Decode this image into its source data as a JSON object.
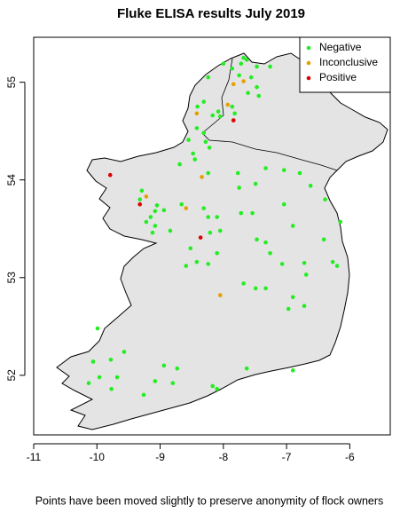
{
  "chart_data": {
    "type": "scatter",
    "title": "Fluke ELISA results July 2019",
    "caption": "Points have been moved slightly to preserve anonymity of flock owners",
    "xlim": [
      -11,
      -5.36
    ],
    "ylim": [
      51.39,
      55.46
    ],
    "xticks": [
      -11,
      -10,
      -9,
      -8,
      -7,
      -6
    ],
    "yticks": [
      52,
      53,
      54,
      55
    ],
    "legend": "top-right",
    "series": [
      {
        "name": "Negative",
        "color": "#22ee22",
        "x": [
          -7.68,
          -7.63,
          -7.72,
          -7.86,
          -7.75,
          -7.47,
          -7.26,
          -7.56,
          -7.47,
          -7.61,
          -7.44,
          -8.24,
          -8.0,
          -8.31,
          -8.08,
          -8.17,
          -8.05,
          -7.86,
          -8.41,
          -8.55,
          -8.48,
          -8.28,
          -8.22,
          -8.45,
          -8.69,
          -8.42,
          -8.31,
          -7.82,
          -7.77,
          -7.33,
          -7.04,
          -8.24,
          -7.75,
          -7.49,
          -6.79,
          -6.62,
          -6.39,
          -6.15,
          -9.29,
          -9.32,
          -9.05,
          -8.94,
          -9.15,
          -9.22,
          -9.08,
          -9.12,
          -8.84,
          -9.08,
          -8.66,
          -8.31,
          -8.24,
          -8.1,
          -8.21,
          -8.05,
          -8.52,
          -8.42,
          -8.24,
          -8.1,
          -8.59,
          -7.72,
          -7.54,
          -7.04,
          -6.9,
          -7.47,
          -7.33,
          -7.26,
          -7.07,
          -6.72,
          -6.41,
          -6.27,
          -6.2,
          -6.9,
          -6.97,
          -6.72,
          -7.68,
          -7.49,
          -7.33,
          -6.69,
          -9.99,
          -10.06,
          -9.78,
          -9.96,
          -9.68,
          -9.77,
          -10.13,
          -8.94,
          -8.73,
          -9.08,
          -8.8,
          -9.26,
          -8.17,
          -8.1,
          -7.63,
          -6.9,
          -9.57
        ],
        "y": [
          55.25,
          55.23,
          55.19,
          55.14,
          55.07,
          55.16,
          55.16,
          55.05,
          54.95,
          54.89,
          54.86,
          55.05,
          55.19,
          54.8,
          54.7,
          54.66,
          54.65,
          54.75,
          54.75,
          54.41,
          54.27,
          54.39,
          54.33,
          54.21,
          54.16,
          54.53,
          54.48,
          54.68,
          54.07,
          54.12,
          54.1,
          54.07,
          53.92,
          53.96,
          54.07,
          53.94,
          53.8,
          53.57,
          53.89,
          53.8,
          53.74,
          53.69,
          53.62,
          53.57,
          53.53,
          53.46,
          53.48,
          53.68,
          53.75,
          53.71,
          53.62,
          53.62,
          53.46,
          53.48,
          53.3,
          53.16,
          53.14,
          53.25,
          53.12,
          53.66,
          53.66,
          53.75,
          53.53,
          53.39,
          53.36,
          53.25,
          53.14,
          53.15,
          53.39,
          53.16,
          53.12,
          52.8,
          52.68,
          52.71,
          52.94,
          52.89,
          52.89,
          53.03,
          52.48,
          52.14,
          52.16,
          51.98,
          51.98,
          51.86,
          51.92,
          52.1,
          52.07,
          51.94,
          51.92,
          51.8,
          51.89,
          51.86,
          52.07,
          52.05,
          52.24
        ]
      },
      {
        "name": "Inconclusive",
        "color": "#e69f00",
        "x": [
          -7.68,
          -7.84,
          -8.42,
          -7.93,
          -8.34,
          -9.22,
          -8.59,
          -8.05
        ],
        "y": [
          55.01,
          54.98,
          54.68,
          54.77,
          54.03,
          53.83,
          53.71,
          52.82
        ]
      },
      {
        "name": "Positive",
        "color": "#dd0000",
        "x": [
          -9.79,
          -9.32,
          -8.36,
          -7.84
        ],
        "y": [
          54.05,
          53.75,
          53.41,
          54.61
        ]
      }
    ]
  }
}
